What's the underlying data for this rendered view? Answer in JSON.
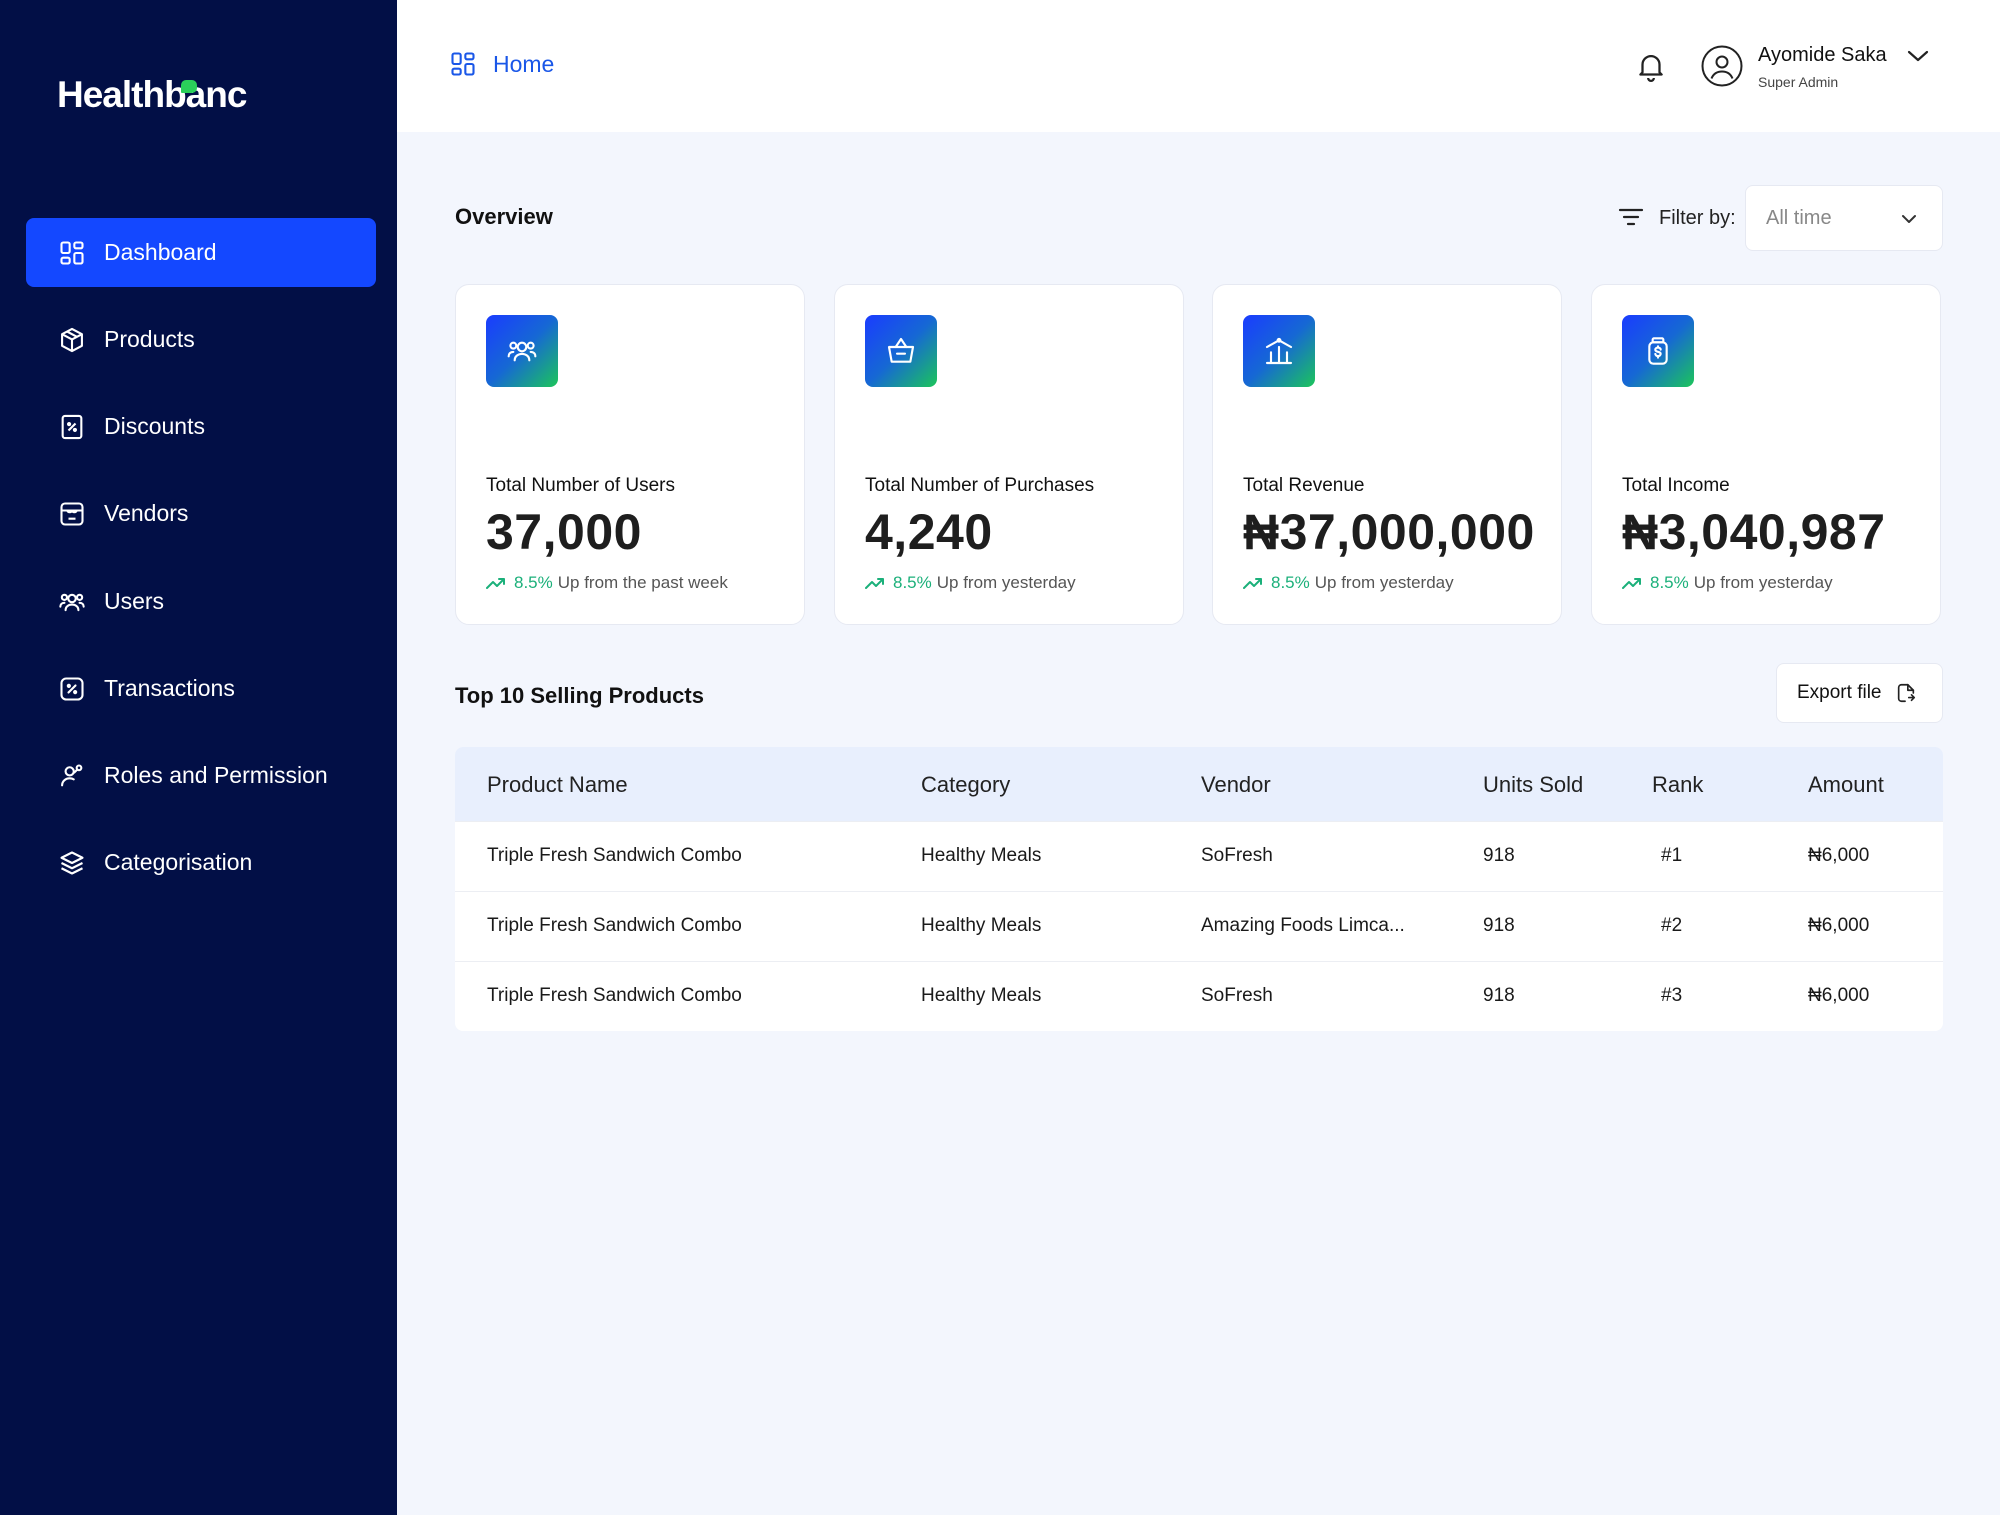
{
  "brand": {
    "name": "Healthbanc"
  },
  "sidebar": {
    "items": [
      {
        "label": "Dashboard",
        "icon": "grid-icon",
        "active": true
      },
      {
        "label": "Products",
        "icon": "box-icon"
      },
      {
        "label": "Discounts",
        "icon": "discount-tag-icon"
      },
      {
        "label": "Vendors",
        "icon": "store-icon"
      },
      {
        "label": "Users",
        "icon": "users-icon"
      },
      {
        "label": "Transactions",
        "icon": "transaction-icon"
      },
      {
        "label": "Roles and Permission",
        "icon": "user-key-icon"
      },
      {
        "label": "Categorisation",
        "icon": "layers-icon"
      }
    ]
  },
  "header": {
    "breadcrumb": "Home",
    "user": {
      "name": "Ayomide Saka",
      "role": "Super Admin"
    }
  },
  "overview": {
    "title": "Overview",
    "filter_label": "Filter by:",
    "filter_value": "All time",
    "cards": [
      {
        "label": "Total Number of Users",
        "value": "37,000",
        "pct": "8.5%",
        "trend_text": "Up from the past week",
        "icon": "users-icon"
      },
      {
        "label": "Total Number of Purchases",
        "value": "4,240",
        "pct": "8.5%",
        "trend_text": "Up from yesterday",
        "icon": "basket-icon"
      },
      {
        "label": "Total Revenue",
        "value": "₦37,000,000",
        "pct": "8.5%",
        "trend_text": "Up from yesterday",
        "icon": "revenue-icon"
      },
      {
        "label": "Total Income",
        "value": "₦3,040,987",
        "pct": "8.5%",
        "trend_text": "Up from yesterday",
        "icon": "money-jar-icon"
      }
    ]
  },
  "top_products": {
    "title": "Top 10 Selling Products",
    "export_label": "Export file",
    "columns": [
      "Product Name",
      "Category",
      "Vendor",
      "Units Sold",
      "Rank",
      "Amount"
    ],
    "rows": [
      [
        "Triple Fresh Sandwich Combo",
        "Healthy Meals",
        "SoFresh",
        "918",
        "#1",
        "₦6,000"
      ],
      [
        "Triple Fresh Sandwich Combo",
        "Healthy Meals",
        "Amazing Foods Limca...",
        "918",
        "#2",
        "₦6,000"
      ],
      [
        "Triple Fresh Sandwich Combo",
        "Healthy Meals",
        "SoFresh",
        "918",
        "#3",
        "₦6,000"
      ]
    ]
  },
  "colors": {
    "sidebar_bg": "#020f46",
    "accent": "#1448ff",
    "trend": "#1bb07a",
    "page_bg": "#f3f6fd"
  }
}
